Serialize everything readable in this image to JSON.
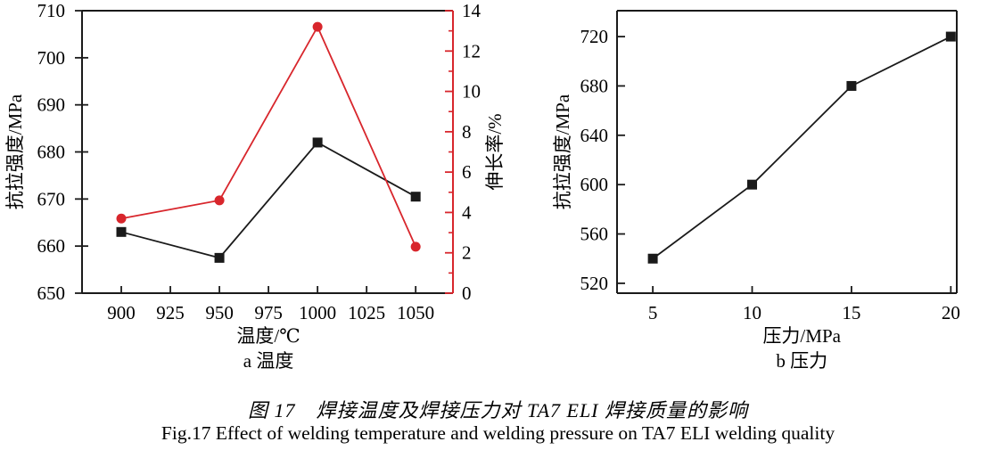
{
  "caption": {
    "zh": "图 17　焊接温度及焊接压力对 TA7 ELI 焊接质量的影响",
    "en": "Fig.17 Effect of welding temperature and welding pressure on TA7 ELI welding quality"
  },
  "colors": {
    "black_series": "#1a1a1a",
    "red_series": "#d8262c",
    "axis": "#1a1a1a",
    "text": "#000000"
  },
  "chart_data": [
    {
      "id": "a",
      "type": "line",
      "subtitle": "a 温度",
      "xlabel": "温度/℃",
      "ylabel": "抗拉强度/MPa",
      "ylabel_right": "伸长率/%",
      "grid": false,
      "legend": "none",
      "x": [
        900,
        950,
        1000,
        1050
      ],
      "x_ticks": [
        900,
        925,
        950,
        975,
        1000,
        1025,
        1050
      ],
      "xlim": [
        880,
        1069
      ],
      "ylim": [
        650,
        710
      ],
      "y_ticks": [
        650,
        660,
        670,
        680,
        690,
        700,
        710
      ],
      "ylim_right": [
        0,
        14
      ],
      "y_ticks_right": [
        0,
        2,
        4,
        6,
        8,
        10,
        12,
        14
      ],
      "y_minor_step_right": 1,
      "series": [
        {
          "name": "抗拉强度",
          "axis": "left",
          "marker": "square",
          "color": "#1a1a1a",
          "values": [
            663,
            657.5,
            682,
            670.5
          ]
        },
        {
          "name": "伸长率",
          "axis": "right",
          "marker": "circle",
          "color": "#d8262c",
          "values": [
            3.7,
            4.6,
            13.2,
            2.3
          ]
        }
      ]
    },
    {
      "id": "b",
      "type": "line",
      "subtitle": "b 压力",
      "xlabel": "压力/MPa",
      "ylabel": "抗拉强度/MPa",
      "grid": false,
      "legend": "none",
      "x": [
        5,
        10,
        15,
        20
      ],
      "x_ticks": [
        5,
        10,
        15,
        20
      ],
      "xlim": [
        3.2,
        20.3
      ],
      "ylim": [
        512,
        741
      ],
      "y_ticks": [
        520,
        560,
        600,
        640,
        680,
        720
      ],
      "series": [
        {
          "name": "抗拉强度",
          "axis": "left",
          "marker": "square",
          "color": "#1a1a1a",
          "values": [
            540,
            600,
            680,
            720
          ]
        }
      ]
    }
  ]
}
